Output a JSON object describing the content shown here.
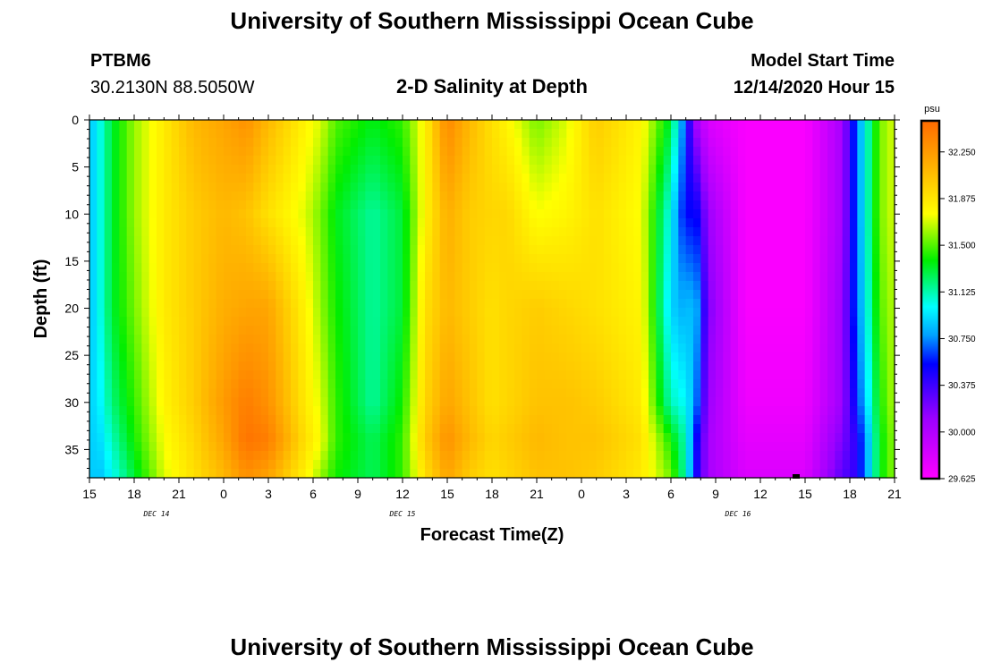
{
  "page": {
    "title_top": "University of Southern Mississippi Ocean Cube",
    "title_bottom": "University of Southern Mississippi Ocean Cube",
    "station": "PTBM6",
    "coords": "30.2130N 88.5050W",
    "plot_title": "2-D Salinity at Depth",
    "model_label": "Model Start Time",
    "model_time": "12/14/2020 Hour 15"
  },
  "chart_data": {
    "type": "heatmap",
    "title": "2-D Salinity at Depth",
    "xlabel": "Forecast Time(Z)",
    "ylabel": "Depth (ft)",
    "x_range_hours": [
      0,
      54
    ],
    "x_ticks": [
      "15",
      "18",
      "21",
      "0",
      "3",
      "6",
      "9",
      "12",
      "15",
      "18",
      "21",
      "0",
      "3",
      "6",
      "9",
      "12",
      "15",
      "18",
      "21"
    ],
    "date_labels": [
      {
        "text": "DEC 14",
        "hour": 4.5
      },
      {
        "text": "DEC 15",
        "hour": 21
      },
      {
        "text": "DEC 16",
        "hour": 43.5
      }
    ],
    "y_range": [
      0,
      38
    ],
    "y_ticks": [
      0,
      5,
      10,
      15,
      20,
      25,
      30,
      35
    ],
    "colorbar": {
      "unit": "psu",
      "range": [
        29.625,
        32.5
      ],
      "tick_labels": [
        "32.250",
        "31.875",
        "31.500",
        "31.125",
        "30.750",
        "30.375",
        "30.000",
        "29.625"
      ],
      "tick_values": [
        32.25,
        31.875,
        31.5,
        31.125,
        30.75,
        30.375,
        30.0,
        29.625
      ]
    },
    "profile_hours": [
      0,
      0.6,
      1.5,
      3,
      5,
      7,
      9,
      10.5,
      12,
      14.5,
      15.5,
      16.5,
      19,
      21,
      22.5,
      24,
      25.5,
      27,
      28,
      30,
      32,
      34,
      37,
      39,
      40,
      40.6,
      41.5,
      44,
      48,
      50.5,
      51.3,
      52,
      53,
      54
    ],
    "profile_depths": [
      0,
      10,
      20,
      30,
      34,
      38
    ],
    "salinity_profiles": [
      [
        30.85,
        30.85,
        30.85,
        30.9,
        30.9,
        30.9
      ],
      [
        31.0,
        31.0,
        31.0,
        30.95,
        30.9,
        30.85
      ],
      [
        31.3,
        31.3,
        31.3,
        31.2,
        31.1,
        31.0
      ],
      [
        31.6,
        31.6,
        31.55,
        31.45,
        31.4,
        31.3
      ],
      [
        31.85,
        31.85,
        31.85,
        31.8,
        31.75,
        31.7
      ],
      [
        32.1,
        32.0,
        32.0,
        32.0,
        31.95,
        31.9
      ],
      [
        32.2,
        32.1,
        32.15,
        32.25,
        32.2,
        32.1
      ],
      [
        32.3,
        32.05,
        32.2,
        32.4,
        32.45,
        32.3
      ],
      [
        32.1,
        31.9,
        32.2,
        32.3,
        32.4,
        32.2
      ],
      [
        31.8,
        31.7,
        31.8,
        31.85,
        31.9,
        31.8
      ],
      [
        31.7,
        31.55,
        31.6,
        31.7,
        31.75,
        31.6
      ],
      [
        31.5,
        31.35,
        31.4,
        31.45,
        31.45,
        31.4
      ],
      [
        31.35,
        31.15,
        31.15,
        31.15,
        31.25,
        31.25
      ],
      [
        31.45,
        31.3,
        31.3,
        31.4,
        31.45,
        31.45
      ],
      [
        31.8,
        31.8,
        31.9,
        31.95,
        32.0,
        31.9
      ],
      [
        32.35,
        32.15,
        32.1,
        32.2,
        32.3,
        32.2
      ],
      [
        32.1,
        32.0,
        32.0,
        32.05,
        32.1,
        32.0
      ],
      [
        31.9,
        31.95,
        31.9,
        31.9,
        31.95,
        31.9
      ],
      [
        31.8,
        31.95,
        31.95,
        31.95,
        32.0,
        31.95
      ],
      [
        31.55,
        31.75,
        32.0,
        32.05,
        32.1,
        32.05
      ],
      [
        31.7,
        31.8,
        31.95,
        32.05,
        32.05,
        32.05
      ],
      [
        32.0,
        31.9,
        31.9,
        32.0,
        32.05,
        32.0
      ],
      [
        31.8,
        31.75,
        31.8,
        31.85,
        31.9,
        31.85
      ],
      [
        31.3,
        31.0,
        30.9,
        31.1,
        31.4,
        31.55
      ],
      [
        30.6,
        30.5,
        30.8,
        31.0,
        31.1,
        31.1
      ],
      [
        30.1,
        30.6,
        30.9,
        30.8,
        30.6,
        30.55
      ],
      [
        29.8,
        30.1,
        30.2,
        30.1,
        30.05,
        30.05
      ],
      [
        29.65,
        29.65,
        29.65,
        29.7,
        29.75,
        29.8
      ],
      [
        29.65,
        29.65,
        29.65,
        29.7,
        29.75,
        29.8
      ],
      [
        30.05,
        30.05,
        30.1,
        30.1,
        30.2,
        30.3
      ],
      [
        30.6,
        30.6,
        30.6,
        30.5,
        30.4,
        30.4
      ],
      [
        31.0,
        31.0,
        30.95,
        30.85,
        30.7,
        30.7
      ],
      [
        31.55,
        31.55,
        31.5,
        31.4,
        31.35,
        31.35
      ],
      [
        31.7,
        31.7,
        31.65,
        31.65,
        31.6,
        31.6
      ]
    ]
  }
}
